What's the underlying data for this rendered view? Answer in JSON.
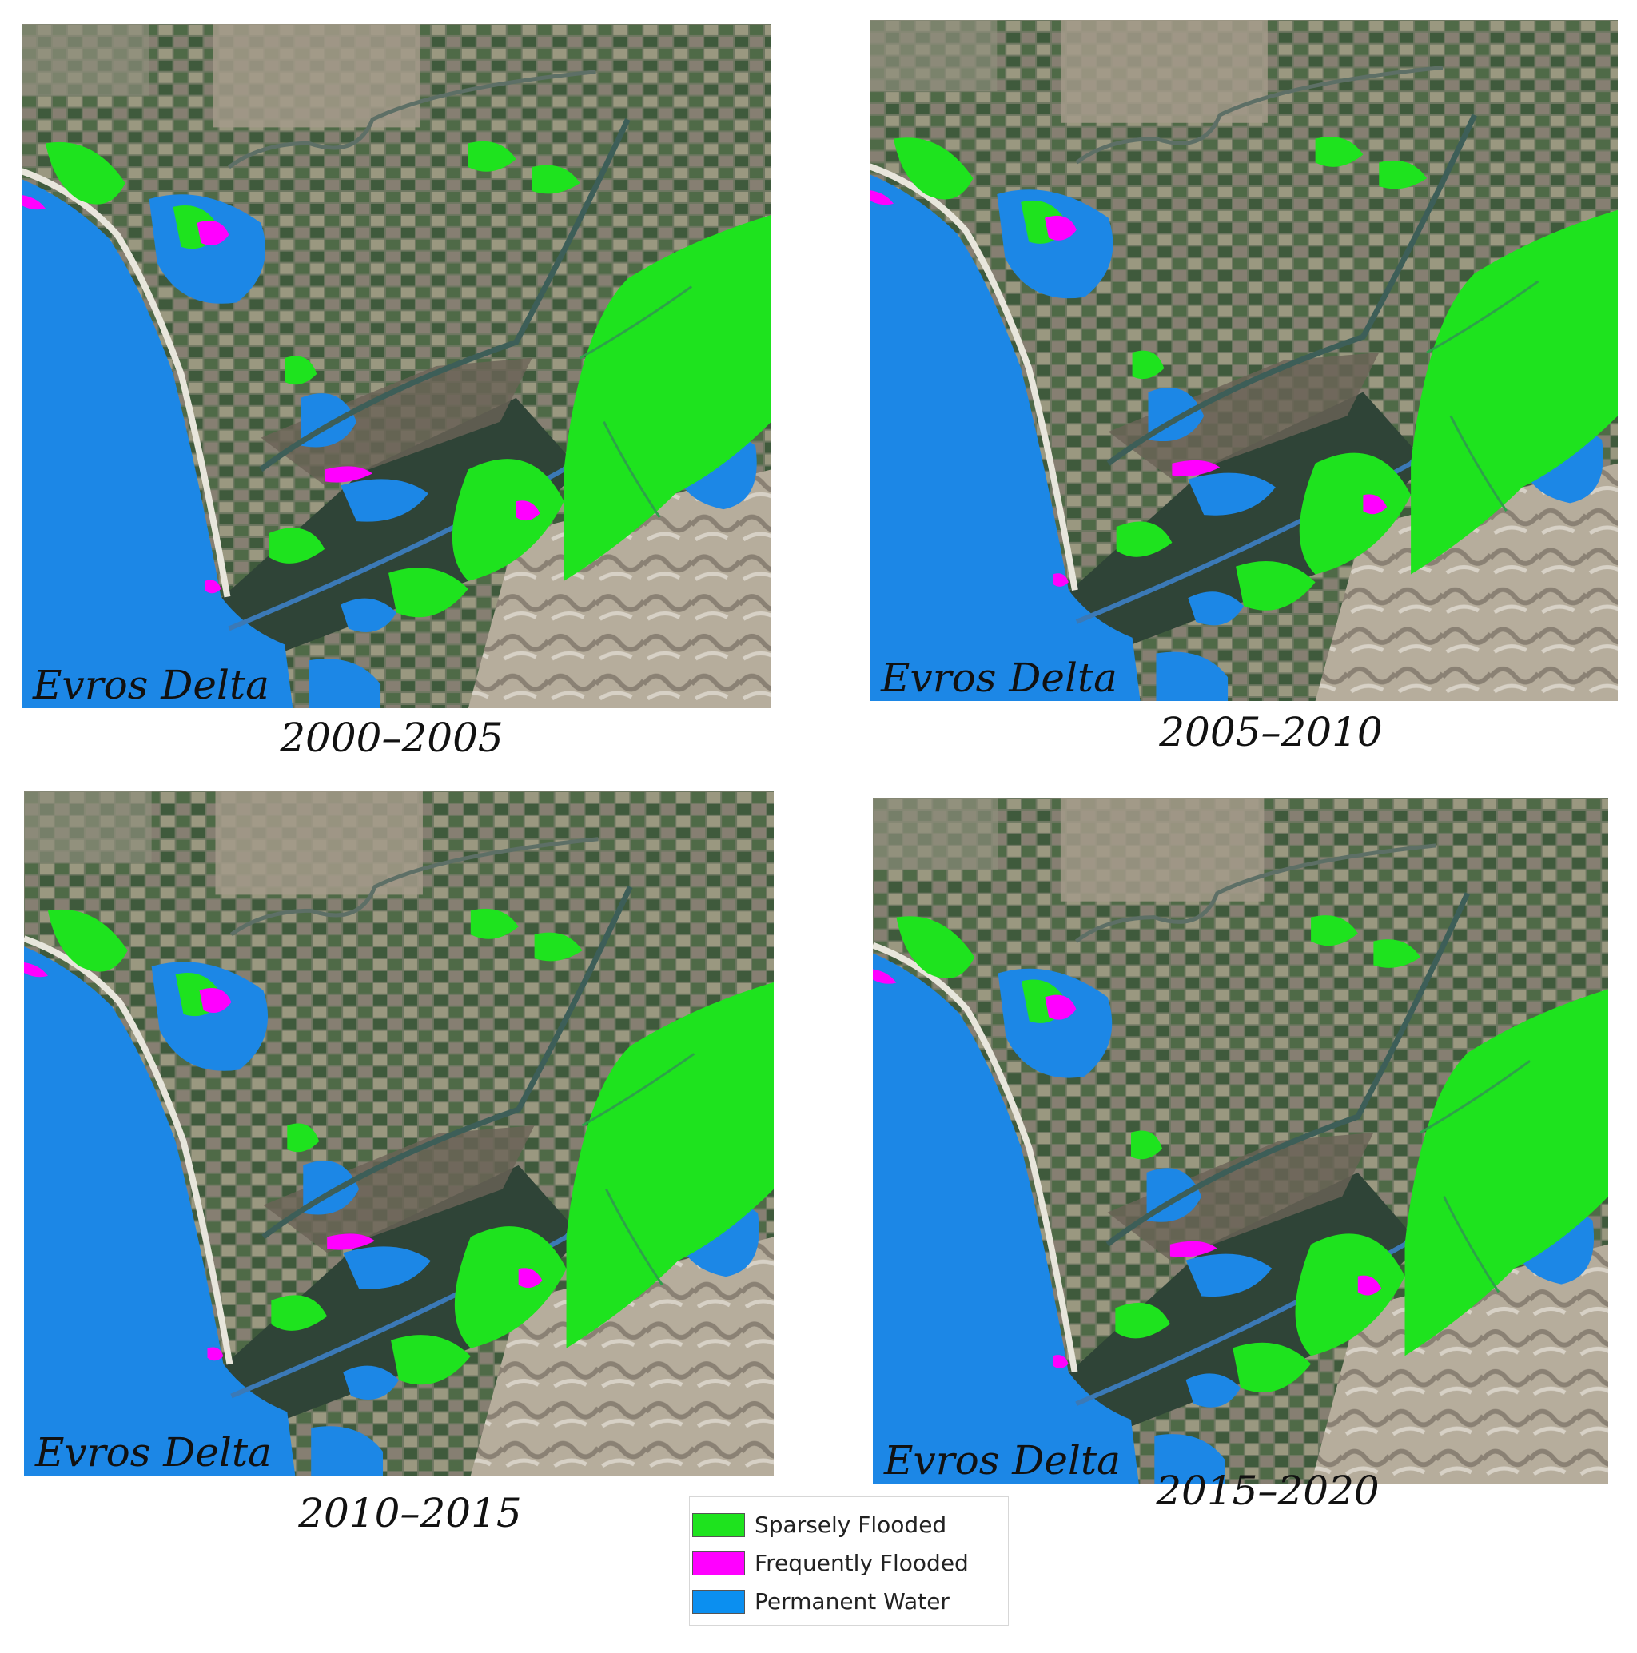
{
  "panels": [
    {
      "map_label": "Evros Delta",
      "caption": "2000–2005"
    },
    {
      "map_label": "Evros Delta",
      "caption": "2005–2010"
    },
    {
      "map_label": "Evros Delta",
      "caption": "2010–2015"
    },
    {
      "map_label": "Evros Delta",
      "caption": "2015–2020"
    }
  ],
  "legend": {
    "items": [
      {
        "label": "Sparsely Flooded",
        "color": "#1ee31e"
      },
      {
        "label": "Frequently Flooded",
        "color": "#ff00ff"
      },
      {
        "label": "Permanent Water",
        "color": "#0b8ff0"
      }
    ]
  },
  "colors": {
    "sea": "#1c87e6",
    "land": "#7b7f6a",
    "marsh": "#30463a",
    "hills": "#b3ab9a"
  }
}
